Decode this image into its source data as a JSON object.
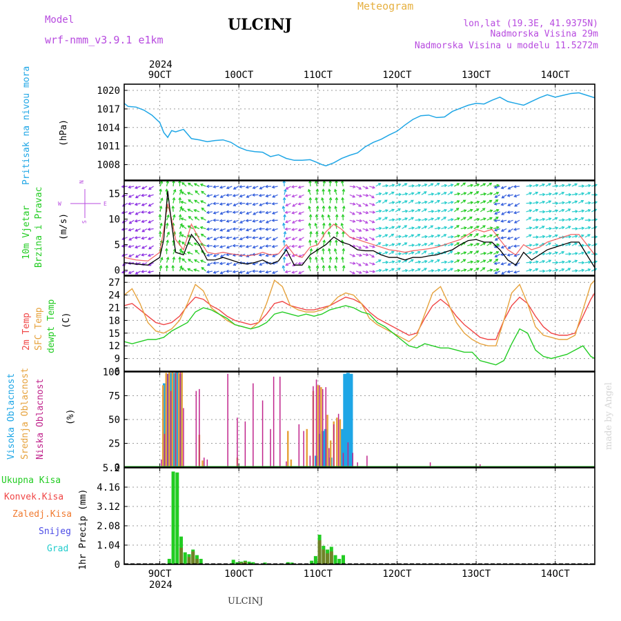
{
  "header": {
    "model_label": "Model",
    "model_name": "wrf-nmm_v3.9.1 e1km",
    "station": "ULCINJ",
    "meteogram": "Meteogram",
    "lonlat": "lon,lat (19.3E, 41.9375N)",
    "elevation": "Nadmorska Visina 29m",
    "model_elevation": "Nadmorska Visina u modelu 11.5272m"
  },
  "footer": {
    "station": "ULCINJ",
    "watermark": "made by Angel"
  },
  "colors": {
    "pressure": "#1ea6e6",
    "wind_label": "#22cc22",
    "wind_arrows": "#b74adf",
    "temp2m": "#f04545",
    "sfc": "#e6a23c",
    "dew": "#22cc22",
    "high_cloud": "#1ea6e6",
    "mid_cloud": "#e6a23c",
    "low_cloud": "#c0248c",
    "rain": "#22cc22",
    "conv": "#f04545",
    "frozen": "#f07a30",
    "snow": "#4a4ae6",
    "graupel": "#22cccc"
  },
  "x_axis": {
    "year": "2024",
    "ticks": [
      "9OCT",
      "10OCT",
      "11OCT",
      "12OCT",
      "13OCT",
      "14OCT"
    ],
    "range_days": [
      8.55,
      14.5
    ]
  },
  "chart_data": [
    {
      "type": "line",
      "panel": "pressure",
      "ylabel": "Pritisak na nivou mora",
      "unit": "(hPa)",
      "ylim": [
        1005.5,
        1021
      ],
      "yticks": [
        "1008",
        "1011",
        "1014",
        "1017",
        "1020"
      ],
      "x": [
        8.55,
        8.6,
        8.7,
        8.8,
        8.9,
        9.0,
        9.05,
        9.1,
        9.15,
        9.2,
        9.3,
        9.4,
        9.5,
        9.6,
        9.7,
        9.8,
        9.9,
        10.0,
        10.1,
        10.2,
        10.3,
        10.4,
        10.5,
        10.6,
        10.7,
        10.8,
        10.9,
        11.0,
        11.05,
        11.1,
        11.2,
        11.3,
        11.4,
        11.5,
        11.6,
        11.7,
        11.8,
        11.9,
        12.0,
        12.1,
        12.2,
        12.3,
        12.4,
        12.5,
        12.6,
        12.7,
        12.8,
        12.9,
        13.0,
        13.1,
        13.2,
        13.3,
        13.4,
        13.5,
        13.6,
        13.7,
        13.8,
        13.9,
        14.0,
        14.1,
        14.2,
        14.3,
        14.4,
        14.5
      ],
      "series": [
        {
          "name": "",
          "values": [
            1017.9,
            1017.4,
            1017.3,
            1016.8,
            1016.0,
            1014.8,
            1013.2,
            1012.4,
            1013.5,
            1013.3,
            1013.7,
            1012.2,
            1012.0,
            1011.7,
            1011.9,
            1012.0,
            1011.6,
            1010.8,
            1010.3,
            1010.1,
            1010.0,
            1009.3,
            1009.6,
            1009.0,
            1008.7,
            1008.7,
            1008.8,
            1008.3,
            1008.0,
            1007.8,
            1008.3,
            1009.0,
            1009.5,
            1009.9,
            1010.9,
            1011.6,
            1012.1,
            1012.8,
            1013.4,
            1014.4,
            1015.3,
            1015.9,
            1016.0,
            1015.6,
            1015.7,
            1016.6,
            1017.1,
            1017.6,
            1017.9,
            1017.8,
            1018.4,
            1018.9,
            1018.2,
            1017.9,
            1017.6,
            1018.2,
            1018.8,
            1019.3,
            1018.9,
            1019.2,
            1019.5,
            1019.6,
            1019.2,
            1018.8
          ]
        }
      ]
    },
    {
      "type": "line",
      "panel": "wind",
      "ylabel_1": "10m Vjetar",
      "ylabel_2": "Brzina i Pravac",
      "unit": "(m/s)",
      "compass": {
        "n": "N",
        "w": "W",
        "e": "E",
        "s": "S"
      },
      "ylim": [
        -1,
        17.5
      ],
      "yticks": [
        "0",
        "5",
        "10",
        "15"
      ],
      "x": [
        8.55,
        8.7,
        8.85,
        9.0,
        9.05,
        9.1,
        9.15,
        9.2,
        9.3,
        9.4,
        9.5,
        9.6,
        9.7,
        9.8,
        9.9,
        10.0,
        10.1,
        10.2,
        10.3,
        10.4,
        10.5,
        10.6,
        10.7,
        10.8,
        10.9,
        11.0,
        11.1,
        11.2,
        11.3,
        11.4,
        11.5,
        11.6,
        11.7,
        11.8,
        11.9,
        12.0,
        12.1,
        12.2,
        12.3,
        12.4,
        12.5,
        12.6,
        12.7,
        12.8,
        12.9,
        13.0,
        13.1,
        13.2,
        13.3,
        13.4,
        13.5,
        13.6,
        13.7,
        13.8,
        13.9,
        14.0,
        14.1,
        14.2,
        14.3,
        14.4,
        14.5
      ],
      "series": [
        {
          "name": "",
          "values": [
            1.5,
            1.2,
            1.0,
            2.5,
            6.0,
            15.5,
            9.0,
            3.5,
            3.0,
            7.0,
            5.0,
            2.0,
            2.0,
            2.5,
            2.0,
            1.5,
            1.2,
            1.5,
            2.0,
            1.2,
            1.8,
            4.0,
            1.0,
            1.0,
            3.0,
            4.0,
            5.0,
            6.5,
            5.5,
            5.0,
            4.0,
            3.8,
            3.8,
            3.0,
            2.5,
            2.5,
            2.0,
            2.5,
            2.5,
            2.8,
            3.0,
            3.5,
            4.0,
            5.0,
            5.8,
            6.0,
            5.5,
            5.5,
            4.0,
            2.0,
            1.0,
            3.5,
            2.0,
            3.0,
            4.0,
            4.5,
            5.0,
            5.5,
            5.5,
            3.0,
            0.5
          ]
        },
        {
          "name": "",
          "values": [
            2.5,
            2.0,
            1.8,
            3.5,
            8.0,
            13.0,
            10.0,
            6.0,
            4.0,
            9.0,
            6.0,
            3.5,
            3.2,
            3.5,
            3.2,
            3.0,
            2.8,
            3.0,
            3.5,
            3.0,
            3.2,
            5.0,
            3.0,
            2.5,
            4.5,
            5.0,
            7.5,
            9.0,
            8.0,
            6.5,
            6.0,
            5.5,
            5.0,
            4.5,
            4.0,
            3.8,
            3.5,
            3.8,
            4.0,
            4.2,
            4.5,
            5.0,
            5.5,
            6.0,
            7.0,
            8.0,
            7.5,
            8.0,
            6.0,
            4.0,
            3.0,
            5.0,
            4.0,
            4.5,
            5.5,
            6.0,
            6.5,
            7.0,
            7.0,
            5.0,
            3.0
          ]
        }
      ]
    },
    {
      "type": "line",
      "panel": "temperature",
      "ylabel_1": "2m Temp",
      "ylabel_2": "SFC Temp",
      "ylabel_3": "dewpt Temp",
      "unit": "(C)",
      "ylim": [
        6,
        28.5
      ],
      "yticks": [
        "6",
        "9",
        "12",
        "15",
        "18",
        "21",
        "24",
        "27"
      ],
      "x": [
        8.55,
        8.65,
        8.75,
        8.85,
        8.95,
        9.05,
        9.15,
        9.25,
        9.35,
        9.45,
        9.55,
        9.65,
        9.75,
        9.85,
        9.95,
        10.05,
        10.15,
        10.25,
        10.35,
        10.45,
        10.55,
        10.65,
        10.75,
        10.85,
        10.95,
        11.05,
        11.15,
        11.25,
        11.35,
        11.45,
        11.55,
        11.65,
        11.75,
        11.85,
        11.95,
        12.05,
        12.15,
        12.25,
        12.35,
        12.45,
        12.55,
        12.65,
        12.75,
        12.85,
        12.95,
        13.05,
        13.15,
        13.25,
        13.35,
        13.45,
        13.55,
        13.65,
        13.75,
        13.85,
        13.95,
        14.05,
        14.15,
        14.25,
        14.35,
        14.45,
        14.5
      ],
      "series": [
        {
          "name": "2m Temp",
          "values": [
            21.5,
            22.0,
            20.5,
            19.0,
            17.5,
            17.0,
            17.5,
            19.0,
            21.5,
            23.5,
            23.0,
            21.5,
            20.5,
            19.0,
            18.0,
            17.5,
            17.0,
            17.5,
            19.5,
            22.0,
            22.5,
            21.5,
            21.0,
            20.5,
            20.5,
            21.0,
            21.5,
            22.5,
            23.5,
            23.0,
            22.0,
            20.0,
            18.5,
            17.5,
            16.5,
            15.5,
            14.5,
            15.0,
            18.5,
            21.5,
            23.0,
            21.5,
            19.0,
            17.0,
            15.5,
            14.0,
            13.5,
            13.5,
            18.0,
            21.5,
            23.5,
            22.0,
            19.0,
            16.5,
            15.0,
            14.5,
            14.5,
            15.0,
            19.0,
            23.0,
            24.5
          ]
        },
        {
          "name": "SFC Temp",
          "values": [
            24.0,
            25.5,
            22.0,
            17.5,
            15.5,
            15.0,
            16.0,
            18.0,
            22.0,
            26.5,
            25.0,
            21.0,
            19.5,
            18.0,
            17.0,
            16.5,
            16.0,
            17.5,
            22.0,
            27.5,
            26.0,
            21.5,
            20.5,
            20.0,
            20.0,
            20.5,
            21.5,
            23.5,
            24.5,
            24.0,
            22.0,
            18.5,
            17.0,
            16.0,
            15.0,
            14.0,
            13.0,
            14.5,
            19.5,
            24.5,
            26.0,
            22.0,
            17.5,
            15.0,
            13.5,
            12.5,
            12.0,
            12.0,
            18.0,
            24.5,
            26.5,
            22.0,
            16.5,
            14.5,
            14.0,
            13.5,
            13.5,
            14.5,
            20.5,
            26.5,
            27.5
          ]
        },
        {
          "name": "dewpt Temp",
          "values": [
            13.0,
            12.5,
            13.0,
            13.5,
            13.5,
            14.0,
            15.5,
            16.5,
            17.5,
            20.0,
            21.0,
            20.5,
            19.5,
            18.5,
            17.0,
            16.5,
            16.0,
            16.5,
            17.5,
            19.5,
            20.0,
            19.5,
            19.0,
            19.5,
            19.0,
            19.5,
            20.5,
            21.0,
            21.5,
            21.0,
            20.0,
            19.5,
            17.5,
            16.5,
            15.0,
            13.5,
            12.0,
            11.5,
            12.5,
            12.0,
            11.5,
            11.5,
            11.0,
            10.5,
            10.5,
            8.5,
            8.0,
            7.5,
            8.5,
            12.5,
            16.0,
            15.0,
            11.0,
            9.5,
            9.0,
            9.5,
            10.0,
            11.0,
            12.0,
            9.5,
            9.0
          ]
        }
      ]
    },
    {
      "type": "bar",
      "panel": "cloud",
      "ylabel_1": "Visoka Oblacnost",
      "ylabel_2": "Srednja Oblacnost",
      "ylabel_3": "Niska Oblacnost",
      "unit": "(%)",
      "ylim": [
        0,
        100
      ],
      "yticks": [
        "0",
        "25",
        "50",
        "75",
        "100"
      ],
      "series": [
        {
          "name": "Visoka Oblacnost",
          "x": [
            9.06,
            9.1,
            9.14,
            9.18,
            9.22,
            9.26,
            10.98,
            11.02,
            11.06,
            11.1,
            11.16,
            11.3,
            11.34,
            11.38,
            11.42
          ],
          "values": [
            88,
            98,
            99,
            99,
            100,
            98,
            12,
            35,
            38,
            40,
            10,
            40,
            98,
            99,
            98
          ]
        },
        {
          "name": "Srednja Oblacnost",
          "x": [
            9.04,
            9.08,
            9.12,
            9.16,
            9.2,
            9.24,
            9.28,
            9.5,
            9.54,
            9.98,
            10.62,
            10.66,
            10.86,
            10.94,
            11.0,
            11.04,
            11.12,
            11.16,
            11.2,
            11.24,
            11.28
          ],
          "values": [
            86,
            99,
            100,
            100,
            99,
            99,
            100,
            34,
            7,
            10,
            38,
            8,
            40,
            80,
            86,
            84,
            55,
            28,
            48,
            52,
            50
          ]
        },
        {
          "name": "Niska Oblacnost",
          "x": [
            9.02,
            9.06,
            9.1,
            9.14,
            9.2,
            9.26,
            9.3,
            9.46,
            9.5,
            9.56,
            9.6,
            9.86,
            9.98,
            10.08,
            10.18,
            10.3,
            10.4,
            10.44,
            10.52,
            10.6,
            10.76,
            10.82,
            10.9,
            10.94,
            10.98,
            11.02,
            11.06,
            11.1,
            11.14,
            11.2,
            11.26,
            11.32,
            11.38,
            11.44,
            11.5,
            11.62,
            12.42,
            13.05
          ],
          "values": [
            8,
            35,
            98,
            80,
            99,
            100,
            62,
            80,
            82,
            10,
            8,
            98,
            52,
            48,
            88,
            70,
            40,
            95,
            95,
            6,
            45,
            38,
            12,
            85,
            92,
            86,
            82,
            84,
            20,
            45,
            56,
            15,
            26,
            15,
            5,
            12,
            5,
            3
          ]
        }
      ]
    },
    {
      "type": "bar",
      "panel": "precip",
      "ylabel_1": "1hr Precip",
      "unit": "(mm)",
      "ylim": [
        0,
        5.2
      ],
      "yticks": [
        "0",
        "1.04",
        "2.08",
        "3.12",
        "4.16",
        "5.2"
      ],
      "legend": [
        "Ukupna Kisa",
        "Konvek.Kisa",
        "Zaledj.Kisa",
        "Snijeg",
        "Grad"
      ],
      "series": [
        {
          "name": "Ukupna Kisa",
          "x": [
            9.12,
            9.17,
            9.22,
            9.27,
            9.32,
            9.37,
            9.42,
            9.47,
            9.52,
            9.93,
            9.98,
            10.03,
            10.08,
            10.13,
            10.18,
            10.33,
            10.62,
            10.67,
            10.92,
            10.97,
            11.02,
            11.07,
            11.12,
            11.17,
            11.22,
            11.27,
            11.32
          ],
          "values": [
            0.3,
            5.0,
            4.95,
            1.5,
            0.65,
            0.55,
            0.8,
            0.5,
            0.3,
            0.25,
            0.12,
            0.15,
            0.2,
            0.15,
            0.12,
            0.1,
            0.12,
            0.1,
            0.2,
            0.45,
            1.6,
            1.0,
            0.8,
            0.95,
            0.5,
            0.3,
            0.5
          ]
        },
        {
          "name": "Konvek.Kisa",
          "x": [
            9.27,
            9.37,
            9.42,
            9.47,
            10.03,
            10.08,
            11.02,
            11.07,
            11.12,
            11.17
          ],
          "values": [
            0.9,
            0.4,
            0.7,
            0.3,
            0.1,
            0.15,
            1.3,
            0.8,
            0.6,
            0.7
          ]
        }
      ]
    }
  ]
}
